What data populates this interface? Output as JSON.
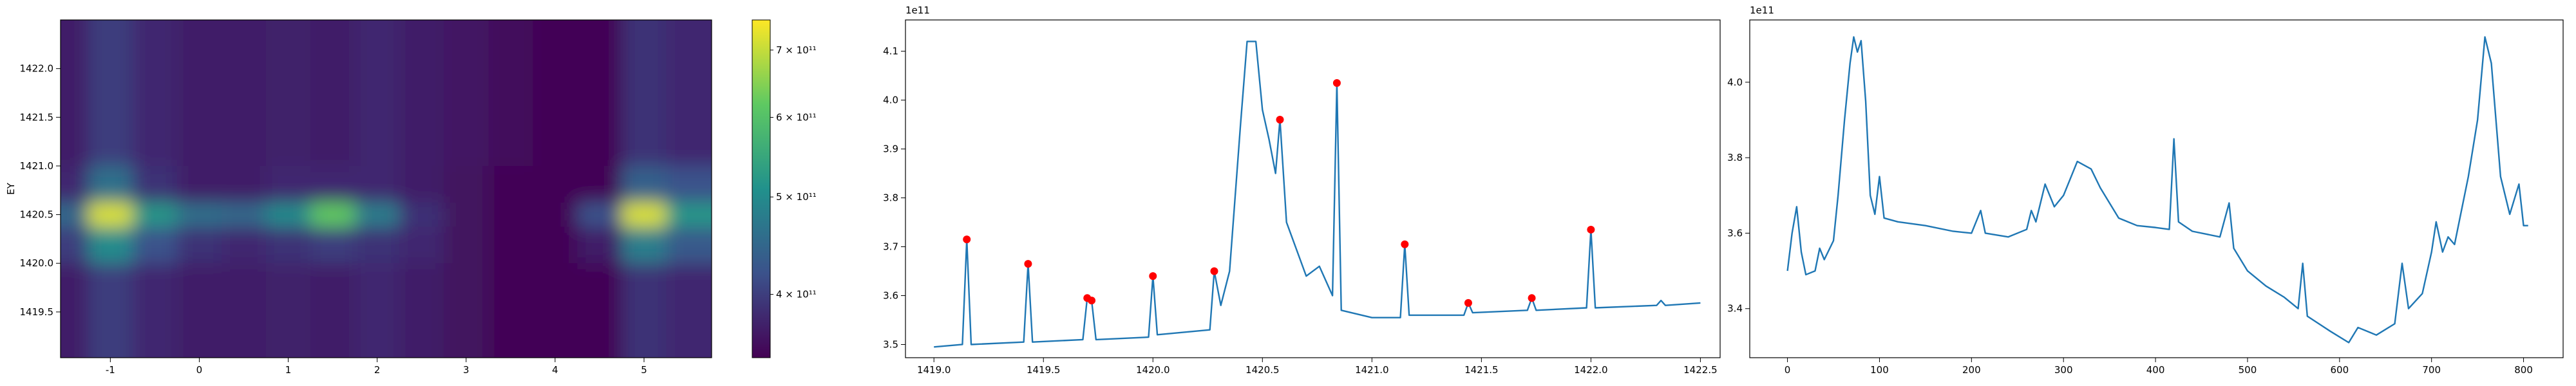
{
  "chart_data": [
    {
      "type": "heatmap",
      "ylabel": "EY",
      "x": [
        -1.5,
        -1,
        -0.5,
        0,
        0.5,
        1,
        1.5,
        2,
        2.5,
        3,
        3.5,
        4,
        4.5,
        5,
        5.5
      ],
      "y": [
        1422.25,
        1421.75,
        1421.25,
        1420.75,
        1420.5,
        1420.25,
        1419.75,
        1419.25
      ],
      "z": [
        [
          370000000000.0,
          400000000000.0,
          380000000000.0,
          370000000000.0,
          370000000000.0,
          375000000000.0,
          370000000000.0,
          380000000000.0,
          370000000000.0,
          365000000000.0,
          355000000000.0,
          350000000000.0,
          350000000000.0,
          390000000000.0,
          380000000000.0
        ],
        [
          370000000000.0,
          400000000000.0,
          380000000000.0,
          370000000000.0,
          370000000000.0,
          375000000000.0,
          370000000000.0,
          380000000000.0,
          370000000000.0,
          365000000000.0,
          355000000000.0,
          350000000000.0,
          350000000000.0,
          390000000000.0,
          380000000000.0
        ],
        [
          370000000000.0,
          400000000000.0,
          380000000000.0,
          370000000000.0,
          370000000000.0,
          375000000000.0,
          370000000000.0,
          380000000000.0,
          370000000000.0,
          365000000000.0,
          355000000000.0,
          350000000000.0,
          350000000000.0,
          390000000000.0,
          380000000000.0
        ],
        [
          380000000000.0,
          460000000000.0,
          390000000000.0,
          370000000000.0,
          370000000000.0,
          380000000000.0,
          380000000000.0,
          380000000000.0,
          370000000000.0,
          360000000000.0,
          350000000000.0,
          350000000000.0,
          350000000000.0,
          440000000000.0,
          420000000000.0
        ],
        [
          450000000000.0,
          720000000000.0,
          520000000000.0,
          460000000000.0,
          450000000000.0,
          500000000000.0,
          620000000000.0,
          480000000000.0,
          390000000000.0,
          360000000000.0,
          350000000000.0,
          350000000000.0,
          420000000000.0,
          720000000000.0,
          520000000000.0
        ],
        [
          400000000000.0,
          500000000000.0,
          420000000000.0,
          390000000000.0,
          380000000000.0,
          390000000000.0,
          400000000000.0,
          390000000000.0,
          380000000000.0,
          360000000000.0,
          350000000000.0,
          350000000000.0,
          370000000000.0,
          480000000000.0,
          430000000000.0
        ],
        [
          370000000000.0,
          400000000000.0,
          380000000000.0,
          370000000000.0,
          370000000000.0,
          375000000000.0,
          370000000000.0,
          380000000000.0,
          370000000000.0,
          360000000000.0,
          350000000000.0,
          350000000000.0,
          350000000000.0,
          390000000000.0,
          380000000000.0
        ],
        [
          370000000000.0,
          400000000000.0,
          380000000000.0,
          370000000000.0,
          370000000000.0,
          375000000000.0,
          370000000000.0,
          380000000000.0,
          370000000000.0,
          360000000000.0,
          350000000000.0,
          350000000000.0,
          350000000000.0,
          390000000000.0,
          380000000000.0
        ]
      ],
      "xlim": [
        -1.56,
        5.76
      ],
      "ylim": [
        1419.03,
        1422.5
      ],
      "xticks": [
        -1,
        0,
        1,
        2,
        3,
        4,
        5
      ],
      "yticks": [
        1419.5,
        {
          "value": 1420,
          "label": "1420.0"
        },
        1420.5,
        {
          "value": 1421,
          "label": "1421.0"
        },
        1421.5,
        {
          "value": 1422,
          "label": "1422.0"
        }
      ],
      "colorbar": {
        "scale": "log",
        "colormap": "viridis",
        "clim": [
          346000000000.0,
          750000000000.0
        ],
        "ticks": [
          {
            "value": 400000000000.0,
            "label": "4 × 10¹¹"
          },
          {
            "value": 500000000000.0,
            "label": "5 × 10¹¹"
          },
          {
            "value": 600000000000.0,
            "label": "6 × 10¹¹"
          },
          {
            "value": 700000000000.0,
            "label": "7 × 10¹¹"
          }
        ]
      }
    },
    {
      "type": "line",
      "offset_text": "1e11",
      "xlim": [
        1418.87,
        1422.59
      ],
      "ylim": [
        3.473,
        4.164
      ],
      "xticks": [
        {
          "value": 1419,
          "label": "1419.0"
        },
        1419.5,
        {
          "value": 1420,
          "label": "1420.0"
        },
        1420.5,
        {
          "value": 1421,
          "label": "1421.0"
        },
        1421.5,
        {
          "value": 1422,
          "label": "1422.0"
        },
        1422.5
      ],
      "yticks": [
        3.5,
        3.6,
        3.7,
        3.8,
        3.9,
        {
          "value": 4,
          "label": "4.0"
        },
        4.1
      ],
      "series": [
        {
          "style": "line",
          "color": "#1f77b4",
          "x": [
            1419.0,
            1419.13,
            1419.15,
            1419.17,
            1419.41,
            1419.43,
            1419.45,
            1419.68,
            1419.7,
            1419.72,
            1419.74,
            1419.98,
            1420.0,
            1420.02,
            1420.26,
            1420.28,
            1420.31,
            1420.35,
            1420.4,
            1420.43,
            1420.47,
            1420.5,
            1420.53,
            1420.56,
            1420.58,
            1420.61,
            1420.7,
            1420.76,
            1420.82,
            1420.84,
            1420.86,
            1421.0,
            1421.13,
            1421.15,
            1421.17,
            1421.42,
            1421.44,
            1421.46,
            1421.71,
            1421.73,
            1421.75,
            1421.98,
            1422.0,
            1422.02,
            1422.3,
            1422.32,
            1422.34,
            1422.5
          ],
          "values": [
            3.495,
            3.5,
            3.715,
            3.5,
            3.505,
            3.665,
            3.505,
            3.51,
            3.595,
            3.59,
            3.51,
            3.515,
            3.64,
            3.52,
            3.53,
            3.65,
            3.58,
            3.65,
            3.95,
            4.12,
            4.12,
            3.98,
            3.92,
            3.85,
            3.96,
            3.75,
            3.64,
            3.66,
            3.6,
            4.035,
            3.57,
            3.555,
            3.555,
            3.705,
            3.56,
            3.56,
            3.585,
            3.565,
            3.57,
            3.595,
            3.57,
            3.575,
            3.735,
            3.575,
            3.58,
            3.59,
            3.58,
            3.585
          ]
        },
        {
          "style": "markers",
          "color": "#ff0000",
          "x": [
            1419.15,
            1419.43,
            1419.7,
            1419.72,
            1420.0,
            1420.28,
            1420.58,
            1420.84,
            1421.15,
            1421.44,
            1421.73,
            1422.0
          ],
          "values": [
            3.715,
            3.665,
            3.595,
            3.59,
            3.64,
            3.65,
            3.96,
            4.035,
            3.705,
            3.585,
            3.595,
            3.735
          ]
        }
      ]
    },
    {
      "type": "line",
      "offset_text": "1e11",
      "xlim": [
        -41,
        843
      ],
      "ylim": [
        3.27,
        4.165
      ],
      "xticks": [
        0,
        100,
        200,
        300,
        400,
        500,
        600,
        700,
        800
      ],
      "yticks": [
        3.4,
        3.6,
        3.8,
        {
          "value": 4,
          "label": "4.0"
        }
      ],
      "series": [
        {
          "style": "line",
          "color": "#1f77b4",
          "x": [
            0,
            5,
            10,
            15,
            20,
            30,
            35,
            40,
            50,
            55,
            62,
            68,
            72,
            76,
            80,
            85,
            90,
            95,
            100,
            105,
            120,
            150,
            180,
            200,
            210,
            215,
            240,
            260,
            265,
            270,
            280,
            290,
            300,
            315,
            330,
            340,
            360,
            380,
            400,
            415,
            420,
            425,
            440,
            470,
            480,
            485,
            500,
            520,
            540,
            555,
            560,
            565,
            590,
            610,
            620,
            640,
            660,
            668,
            675,
            690,
            700,
            705,
            712,
            718,
            725,
            740,
            750,
            758,
            765,
            775,
            785,
            795,
            800,
            805
          ],
          "values": [
            3.5,
            3.6,
            3.67,
            3.55,
            3.49,
            3.5,
            3.56,
            3.53,
            3.58,
            3.7,
            3.9,
            4.05,
            4.12,
            4.08,
            4.11,
            3.95,
            3.7,
            3.65,
            3.75,
            3.64,
            3.63,
            3.62,
            3.605,
            3.6,
            3.66,
            3.6,
            3.59,
            3.61,
            3.66,
            3.63,
            3.73,
            3.67,
            3.7,
            3.79,
            3.77,
            3.72,
            3.64,
            3.62,
            3.615,
            3.61,
            3.85,
            3.63,
            3.605,
            3.59,
            3.68,
            3.56,
            3.5,
            3.46,
            3.43,
            3.4,
            3.52,
            3.38,
            3.34,
            3.31,
            3.35,
            3.33,
            3.36,
            3.52,
            3.4,
            3.44,
            3.55,
            3.63,
            3.55,
            3.59,
            3.57,
            3.75,
            3.9,
            4.12,
            4.05,
            3.75,
            3.65,
            3.73,
            3.62,
            3.62
          ]
        }
      ]
    }
  ]
}
